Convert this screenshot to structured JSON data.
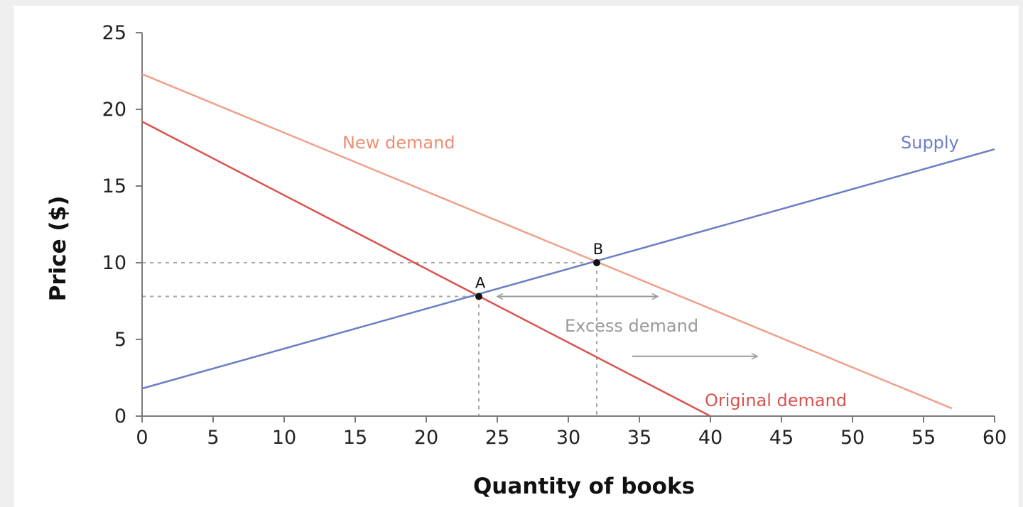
{
  "chart_data": {
    "type": "line",
    "xlabel": "Quantity of books",
    "ylabel": "Price ($)",
    "xlim": [
      0,
      60
    ],
    "ylim": [
      0,
      25
    ],
    "xticks": [
      0,
      5,
      10,
      15,
      20,
      25,
      30,
      35,
      40,
      45,
      50,
      55,
      60
    ],
    "yticks": [
      0,
      5,
      10,
      15,
      20,
      25
    ],
    "grid": false,
    "series": [
      {
        "name": "Original demand",
        "color": "#d9534f",
        "points": [
          [
            0,
            19.2
          ],
          [
            40,
            0
          ]
        ]
      },
      {
        "name": "New demand",
        "color": "#f0a08a",
        "points": [
          [
            0,
            22.3
          ],
          [
            57,
            0.5
          ]
        ]
      },
      {
        "name": "Supply",
        "color": "#6b7ec4",
        "points": [
          [
            0,
            1.8
          ],
          [
            60,
            17.4
          ]
        ]
      }
    ],
    "points": [
      {
        "label": "A",
        "x": 23.7,
        "y": 7.8
      },
      {
        "label": "B",
        "x": 32,
        "y": 10
      }
    ],
    "annotations": [
      {
        "text": "Excess demand",
        "color": "#9a9a9a"
      }
    ],
    "arrows": [
      {
        "from": [
          25,
          7.8
        ],
        "to": [
          36.3,
          7.8
        ],
        "double": true,
        "color": "#9a9a9a"
      },
      {
        "from": [
          34.5,
          3.9
        ],
        "to": [
          43.3,
          3.9
        ],
        "double": false,
        "color": "#9a9a9a"
      }
    ]
  }
}
